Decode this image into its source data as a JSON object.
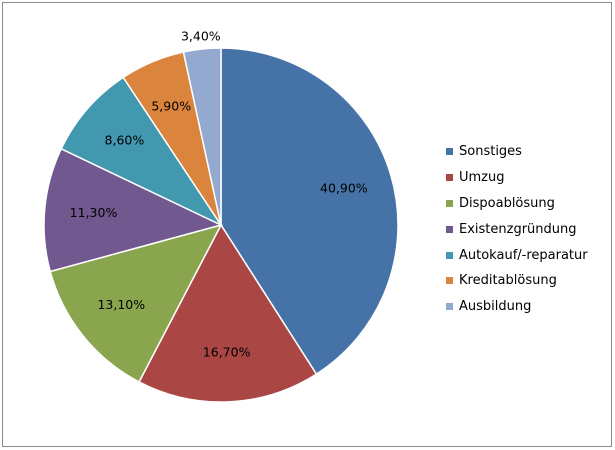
{
  "chart_data": {
    "type": "pie",
    "title": "",
    "categories": [
      "Sonstiges",
      "Umzug",
      "Dispoablösung",
      "Existenzgründung",
      "Autokauf/-reparatur",
      "Kreditablösung",
      "Ausbildung"
    ],
    "values": [
      40.9,
      16.7,
      13.1,
      11.3,
      8.6,
      5.9,
      3.4
    ],
    "value_labels": [
      "40,90%",
      "16,70%",
      "13,10%",
      "11,30%",
      "8,60%",
      "5,90%",
      "3,40%"
    ],
    "colors": [
      "#4572a7",
      "#aa4643",
      "#89a54e",
      "#71588f",
      "#4198af",
      "#db843d",
      "#93a9cf"
    ],
    "start": "12 o'clock",
    "direction": "clockwise",
    "legend_position": "right"
  }
}
